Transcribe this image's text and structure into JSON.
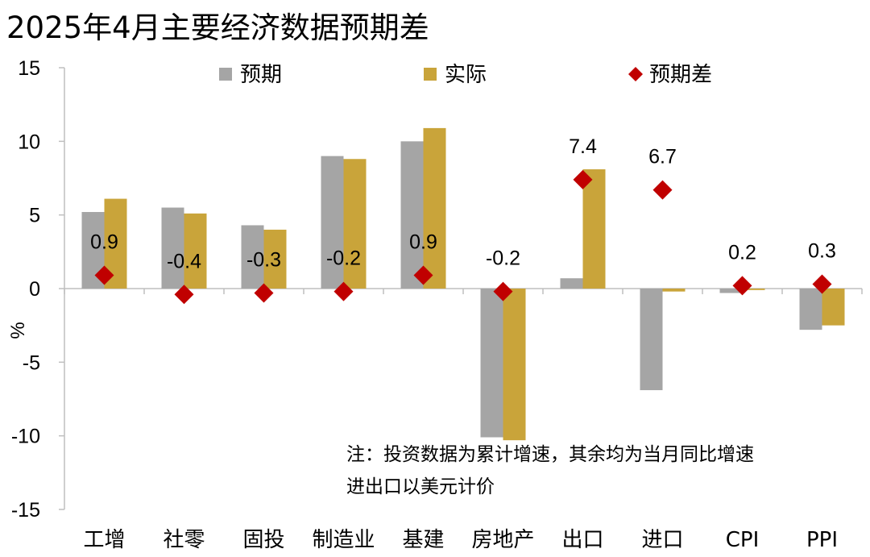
{
  "chart_data": {
    "type": "bar",
    "title": "2025年4月主要经济数据预期差",
    "ylabel": "%",
    "xlabel": "",
    "ylim": [
      -15,
      15
    ],
    "yticks": [
      15,
      10,
      5,
      0,
      -5,
      -10,
      -15
    ],
    "categories": [
      "工增",
      "社零",
      "固投",
      "制造业",
      "基建",
      "房地产",
      "出口",
      "进口",
      "CPI",
      "PPI"
    ],
    "series": [
      {
        "name": "预期",
        "kind": "bar",
        "color": "#A5A5A5",
        "values": [
          5.2,
          5.5,
          4.3,
          9.0,
          10.0,
          -10.1,
          0.7,
          -6.9,
          -0.3,
          -2.8
        ]
      },
      {
        "name": "实际",
        "kind": "bar",
        "color": "#C9A43A",
        "values": [
          6.1,
          5.1,
          4.0,
          8.8,
          10.9,
          -10.3,
          8.1,
          -0.2,
          -0.1,
          -2.5
        ]
      },
      {
        "name": "预期差",
        "kind": "marker",
        "marker": "diamond",
        "color": "#C00000",
        "values": [
          0.9,
          -0.4,
          -0.3,
          -0.2,
          0.9,
          -0.2,
          7.4,
          6.7,
          0.2,
          0.3
        ],
        "labels": [
          "0.9",
          "-0.4",
          "-0.3",
          "-0.2",
          "0.9",
          "-0.2",
          "7.4",
          "6.7",
          "0.2",
          "0.3"
        ]
      }
    ],
    "legend_position": "top",
    "grid": false
  },
  "notes": {
    "line1": "注：投资数据为累计增速，其余均为当月同比增速",
    "line2": "进出口以美元计价"
  }
}
